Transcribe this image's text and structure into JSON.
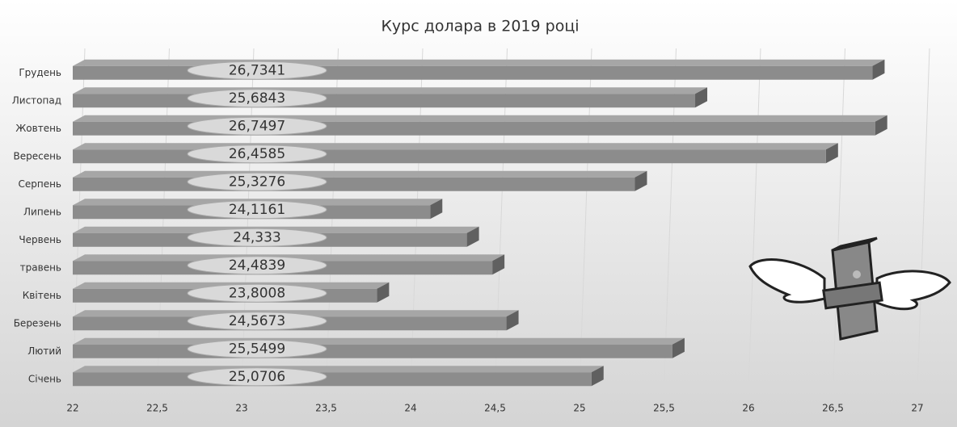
{
  "chart_data": {
    "type": "bar",
    "orientation": "horizontal",
    "title": "Курс долара в 2019 році",
    "categories": [
      "Грудень",
      "Листопад",
      "Жовтень",
      "Вересень",
      "Серпень",
      "Липень",
      "Червень",
      "травень",
      "Квітень",
      "Березень",
      "Лютий",
      "Січень"
    ],
    "values": [
      26.7341,
      25.6843,
      26.7497,
      26.4585,
      25.3276,
      24.1161,
      24.333,
      24.4839,
      23.8008,
      24.5673,
      25.5499,
      25.0706
    ],
    "value_labels": [
      "26,7341",
      "25,6843",
      "26,7497",
      "26,4585",
      "25,3276",
      "24,1161",
      "24,333",
      "24,4839",
      "23,8008",
      "24,5673",
      "25,5499",
      "25,0706"
    ],
    "color": "#8c8c8c",
    "xlim": [
      22,
      27
    ],
    "xticks": [
      22,
      {
        "value": 22.5,
        "label": "22,5"
      },
      23,
      {
        "value": 23.5,
        "label": "23,5"
      },
      24,
      {
        "value": 24.5,
        "label": "24,5"
      },
      25,
      {
        "value": 25.5,
        "label": "25,5"
      },
      26,
      {
        "value": 26.5,
        "label": "26,5"
      },
      27
    ],
    "grid": true
  }
}
